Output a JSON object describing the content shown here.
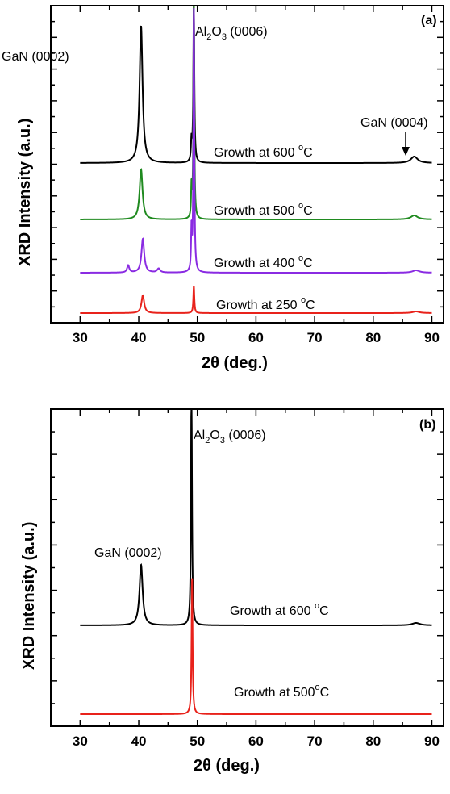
{
  "chart_data": [
    {
      "panel": "a",
      "type": "line",
      "panel_label": "(a)",
      "xlabel_main": "2",
      "xlabel_theta": "θ",
      "xlabel_rest": " (deg.)",
      "ylabel": "XRD Intensity (a.u.)",
      "xlim": [
        25,
        92
      ],
      "x_ticks": [
        "30",
        "40",
        "50",
        "60",
        "70",
        "80",
        "90"
      ],
      "peak_labels": {
        "gan_0002": "GaN (0002)",
        "al2o3_pre": "Al",
        "al2o3_sub1": "2",
        "al2o3_mid": "O",
        "al2o3_sub2": "3",
        "al2o3_post": " (0006)",
        "gan_0004": "GaN (0004)"
      },
      "series": [
        {
          "name_prefix": "Growth at 600 ",
          "name_deg": "o",
          "name_unit": "C",
          "color": "#000000",
          "baseline": 0,
          "peaks": [
            [
              40.4,
              170,
              0.3
            ],
            [
              49.0,
              25,
              0.1
            ],
            [
              49.4,
              200,
              0.1
            ],
            [
              87.0,
              8,
              0.7
            ]
          ]
        },
        {
          "name_prefix": "Growth at 500 ",
          "name_deg": "o",
          "name_unit": "C",
          "color": "#1f8a1f",
          "baseline": 0,
          "peaks": [
            [
              40.4,
              62,
              0.3
            ],
            [
              49.0,
              38,
              0.08
            ],
            [
              49.4,
              270,
              0.09
            ],
            [
              87.0,
              5,
              0.7
            ]
          ]
        },
        {
          "name_prefix": "Growth at 400 ",
          "name_deg": "o",
          "name_unit": "C",
          "color": "#8a2be2",
          "baseline": 0,
          "peaks": [
            [
              38.2,
              9,
              0.22
            ],
            [
              40.7,
              42,
              0.28
            ],
            [
              43.4,
              5,
              0.3
            ],
            [
              49.0,
              50,
              0.08
            ],
            [
              49.4,
              330,
              0.09
            ],
            [
              87.3,
              3,
              0.7
            ]
          ]
        },
        {
          "name_prefix": "Growth at 250 ",
          "name_deg": "o",
          "name_unit": "C",
          "color": "#e8221b",
          "baseline": 0,
          "peaks": [
            [
              40.7,
              22,
              0.28
            ],
            [
              49.4,
              34,
              0.1
            ],
            [
              87.3,
              2,
              0.7
            ]
          ]
        }
      ]
    },
    {
      "panel": "b",
      "type": "line",
      "panel_label": "(b)",
      "xlabel_main": "2",
      "xlabel_theta": "θ",
      "xlabel_rest": " (deg.)",
      "ylabel": "XRD Intensity (a.u.)",
      "xlim": [
        25,
        92
      ],
      "x_ticks": [
        "30",
        "40",
        "50",
        "60",
        "70",
        "80",
        "90"
      ],
      "peak_labels": {
        "gan_0002": "GaN (0002)",
        "al2o3_pre": "Al",
        "al2o3_sub1": "2",
        "al2o3_mid": "O",
        "al2o3_sub2": "3",
        "al2o3_post": " (0006)"
      },
      "series": [
        {
          "name_prefix": "Growth at 600 ",
          "name_deg": "o",
          "name_unit": "C",
          "color": "#000000",
          "baseline": 0,
          "peaks": [
            [
              40.4,
              75,
              0.32
            ],
            [
              49.0,
              300,
              0.1
            ],
            [
              87.3,
              3,
              0.8
            ]
          ]
        },
        {
          "name_prefix": "Growth at 500",
          "name_deg": "o",
          "name_unit": "C",
          "color": "#e8221b",
          "baseline": 0,
          "peaks": [
            [
              49.1,
              170,
              0.1
            ]
          ]
        }
      ]
    }
  ]
}
